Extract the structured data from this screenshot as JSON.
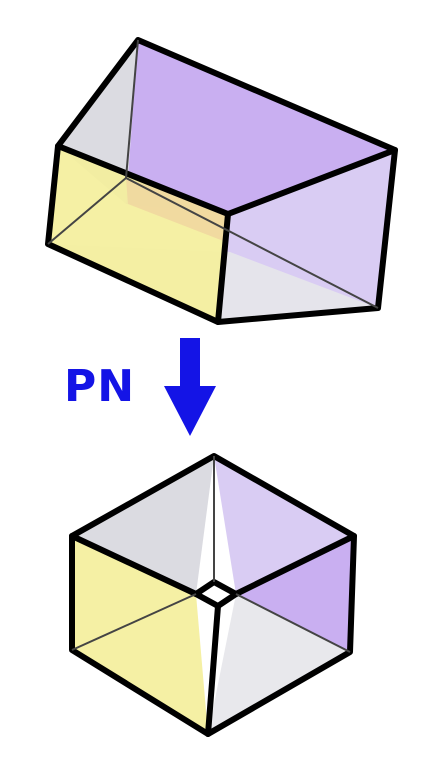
{
  "diagram": {
    "arrow_label": "PN",
    "colors": {
      "purple": "#c4a8f0",
      "purple_light": "#d6c8f2",
      "yellow": "#f4ef9c",
      "gray": "#d8d8de",
      "gray_light": "#e6e6ea",
      "orange_overlap": "#f0d8a0",
      "arrow": "#1414e6",
      "edge": "#000000"
    }
  }
}
